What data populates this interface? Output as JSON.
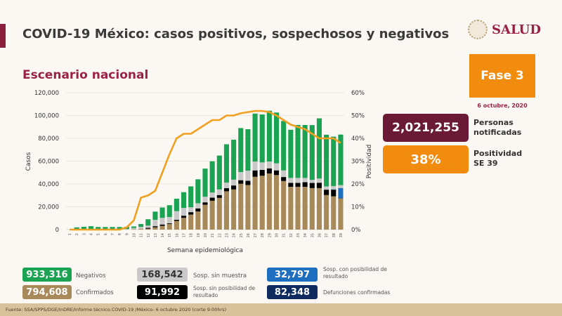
{
  "header": {
    "title": "COVID-19 México: casos positivos, sospechosos y negativos",
    "subtitle": "Escenario nacional",
    "logo_text": "SALUD",
    "phase": "Fase 3",
    "date": "6 octubre, 2020"
  },
  "kpis": {
    "notified_value": "2,021,255",
    "notified_label_1": "Personas",
    "notified_label_2": "notificadas",
    "positivity_value": "38%",
    "positivity_label_1": "Positividad",
    "positivity_label_2": "SE 39"
  },
  "legend": [
    {
      "value": "933,316",
      "label": "Negativos",
      "color": "#1aa352"
    },
    {
      "value": "168,542",
      "label": "Sosp. sin muestra",
      "color": "#c9c9c9"
    },
    {
      "value": "32,797",
      "label": "Sosp. con posibilidad de resultado",
      "color": "#1f6fc0"
    },
    {
      "value": "794,608",
      "label": "Confirmados",
      "color": "#a8895a"
    },
    {
      "value": "91,992",
      "label": "Sosp. sin posibilidad de resultado",
      "color": "#000000"
    },
    {
      "value": "82,348",
      "label": "Defunciones confirmadas",
      "color": "#0f2a5e"
    }
  ],
  "footer": "Fuente: SSA/SPPS/DGE/InDRE/Informe técnico.COVID-19 /México- 6 octubre 2020 (corte 9:00hrs)",
  "chart_data": {
    "type": "bar",
    "stacked": true,
    "xlabel": "Semana epidemiológica",
    "ylabel": "Casos",
    "y2label": "Positividad",
    "ylim": [
      0,
      120000
    ],
    "y_ticks": [
      "0",
      "20,000",
      "40,000",
      "60,000",
      "80,000",
      "100,000",
      "120,000"
    ],
    "y2lim": [
      0,
      60
    ],
    "y2_ticks": [
      "0%",
      "10%",
      "20%",
      "30%",
      "40%",
      "50%",
      "60%"
    ],
    "grid": true,
    "categories": [
      "1",
      "2",
      "3",
      "4",
      "5",
      "6",
      "7",
      "8",
      "9",
      "10",
      "11",
      "12",
      "13",
      "14",
      "15",
      "16",
      "17",
      "18",
      "19",
      "20",
      "21",
      "22",
      "23",
      "24",
      "25",
      "26",
      "27",
      "28",
      "29",
      "30",
      "31",
      "32",
      "33",
      "34",
      "35",
      "36",
      "37",
      "38",
      "39"
    ],
    "series": [
      {
        "name": "Confirmados",
        "color": "#a8895a",
        "values": [
          0,
          0,
          0,
          0,
          0,
          0,
          0,
          0,
          0,
          400,
          800,
          800,
          2000,
          3300,
          4900,
          7600,
          10300,
          13200,
          15900,
          21800,
          25300,
          27800,
          33600,
          35200,
          40200,
          39100,
          46300,
          47200,
          49200,
          47800,
          42600,
          37500,
          37500,
          37500,
          36400,
          36400,
          30300,
          29200,
          27200
        ]
      },
      {
        "name": "Sosp. sin posibilidad de resultado",
        "color": "#000000",
        "values": [
          0,
          0,
          0,
          0,
          0,
          0,
          0,
          0,
          0,
          0,
          0,
          800,
          1000,
          1200,
          600,
          1000,
          1900,
          2100,
          2700,
          2100,
          2700,
          2500,
          2700,
          3500,
          3100,
          3700,
          5600,
          5100,
          4500,
          4100,
          3500,
          3500,
          3500,
          4100,
          4500,
          4700,
          4700,
          5800,
          300
        ]
      },
      {
        "name": "Sosp. con posibilidad de resultado",
        "color": "#1f6fc0",
        "values": [
          0,
          0,
          0,
          0,
          0,
          0,
          0,
          0,
          0,
          0,
          0,
          0,
          0,
          0,
          0,
          0,
          0,
          0,
          0,
          0,
          0,
          0,
          0,
          0,
          0,
          0,
          0,
          0,
          0,
          0,
          0,
          0,
          0,
          0,
          0,
          0,
          0,
          300,
          9000
        ]
      },
      {
        "name": "Sosp. sin muestra",
        "color": "#c9c9c9",
        "values": [
          300,
          500,
          500,
          500,
          500,
          500,
          500,
          500,
          500,
          1000,
          1600,
          1900,
          5600,
          5800,
          5600,
          7600,
          6800,
          4300,
          4500,
          4900,
          4500,
          4900,
          4900,
          5100,
          7200,
          8900,
          7800,
          6600,
          6000,
          6200,
          5800,
          4300,
          4300,
          3700,
          2700,
          3700,
          2900,
          2900,
          2500
        ]
      },
      {
        "name": "Negativos",
        "color": "#1aa352",
        "values": [
          0,
          1500,
          2000,
          2500,
          1800,
          1800,
          1800,
          1800,
          2000,
          1400,
          2500,
          5600,
          7200,
          9100,
          10300,
          10900,
          13800,
          18300,
          21000,
          24700,
          27400,
          29700,
          33600,
          35000,
          38500,
          36300,
          42000,
          42000,
          44500,
          44500,
          43300,
          42200,
          46400,
          46400,
          48000,
          52700,
          45300,
          43300,
          44300
        ]
      }
    ],
    "line": {
      "name": "Positividad",
      "color": "#f0a020",
      "axis": "right",
      "values": [
        0,
        0,
        0,
        0,
        0,
        0,
        0,
        0,
        1,
        4,
        14,
        15,
        17,
        25,
        33,
        40,
        42,
        42,
        44,
        46,
        48,
        48,
        50,
        50,
        51,
        51.5,
        52,
        52,
        51.5,
        50,
        48,
        46,
        45,
        44,
        42,
        40,
        40,
        40,
        38
      ]
    }
  }
}
